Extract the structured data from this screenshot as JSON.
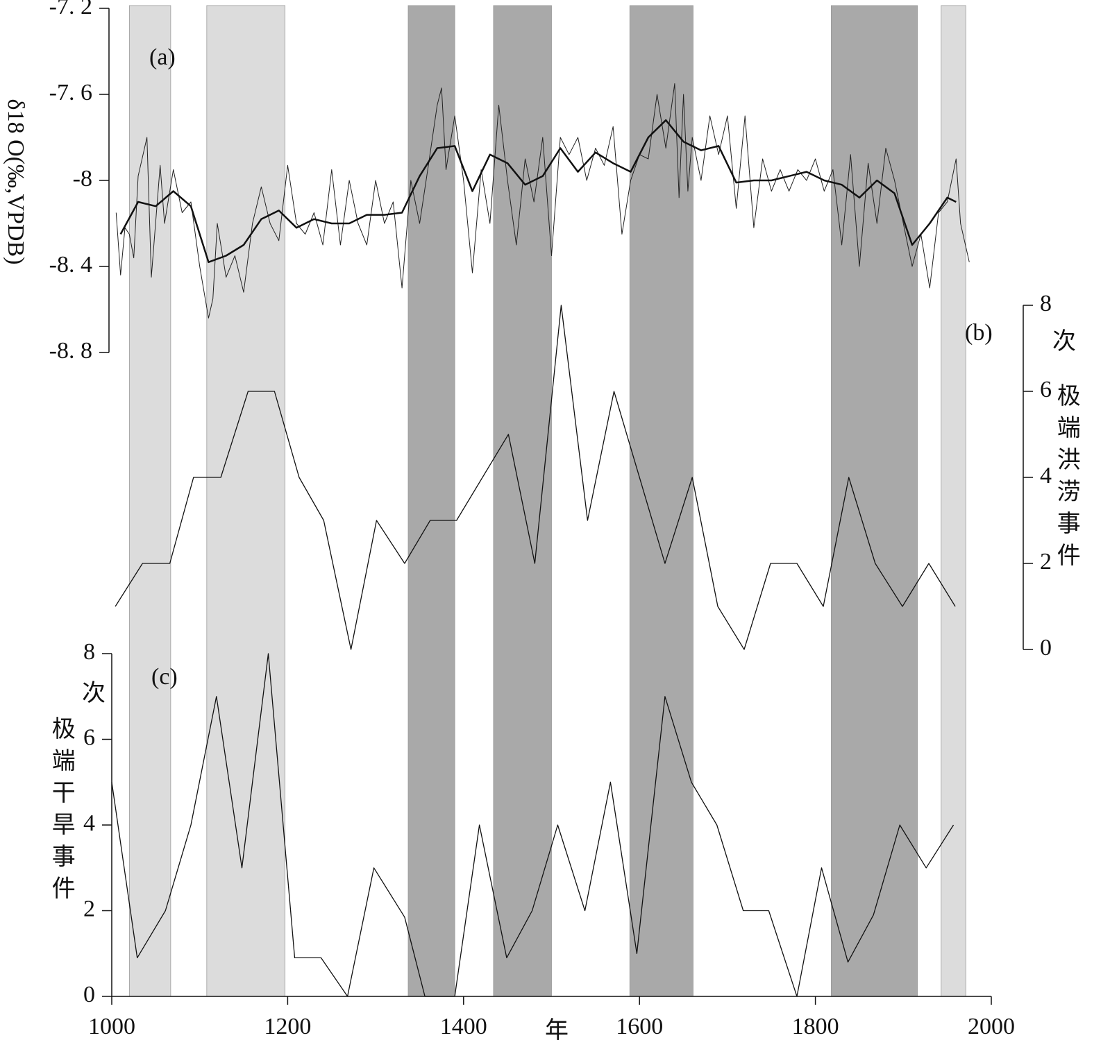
{
  "shaded_periods": [
    {
      "start": 1020,
      "end": 1067,
      "color": "#dcdcdc"
    },
    {
      "start": 1108,
      "end": 1197,
      "color": "#dcdcdc"
    },
    {
      "start": 1337,
      "end": 1390,
      "color": "#a9a9a9"
    },
    {
      "start": 1434,
      "end": 1500,
      "color": "#a9a9a9"
    },
    {
      "start": 1589,
      "end": 1661,
      "color": "#a9a9a9"
    },
    {
      "start": 1818,
      "end": 1916,
      "color": "#a9a9a9"
    },
    {
      "start": 1943,
      "end": 1971,
      "color": "#dcdcdc"
    }
  ],
  "chart_data": [
    {
      "type": "line",
      "panel_label": "(a)",
      "y_label": "δ18 O(‰,VPDB)",
      "xlim": [
        1000,
        2000
      ],
      "ylim": [
        -8.8,
        -7.2
      ],
      "yticks": [
        {
          "value": -7.2,
          "label": "-7. 2"
        },
        {
          "value": -7.6,
          "label": "-7. 6"
        },
        -8,
        {
          "value": -8.4,
          "label": "-8. 4"
        },
        {
          "value": -8.8,
          "label": "-8. 8"
        }
      ],
      "series": [
        {
          "color": "#222",
          "width": 1,
          "x": [
            1005,
            1010,
            1015,
            1020,
            1025,
            1030,
            1040,
            1045,
            1055,
            1060,
            1070,
            1080,
            1090,
            1100,
            1110,
            1115,
            1120,
            1130,
            1140,
            1150,
            1160,
            1170,
            1180,
            1190,
            1200,
            1210,
            1220,
            1230,
            1240,
            1250,
            1260,
            1270,
            1280,
            1290,
            1300,
            1310,
            1320,
            1330,
            1340,
            1350,
            1360,
            1370,
            1375,
            1380,
            1390,
            1400,
            1410,
            1420,
            1430,
            1440,
            1450,
            1460,
            1470,
            1480,
            1490,
            1500,
            1510,
            1520,
            1530,
            1540,
            1550,
            1560,
            1570,
            1580,
            1590,
            1600,
            1610,
            1620,
            1630,
            1640,
            1645,
            1650,
            1655,
            1660,
            1670,
            1680,
            1690,
            1700,
            1710,
            1720,
            1730,
            1740,
            1750,
            1760,
            1770,
            1780,
            1790,
            1800,
            1810,
            1820,
            1830,
            1840,
            1850,
            1860,
            1870,
            1880,
            1890,
            1900,
            1910,
            1920,
            1930,
            1940,
            1950,
            1960,
            1965,
            1975
          ],
          "values": [
            -8.15,
            -8.44,
            -8.22,
            -8.25,
            -8.36,
            -7.98,
            -7.8,
            -8.45,
            -7.93,
            -8.2,
            -7.95,
            -8.15,
            -8.1,
            -8.4,
            -8.64,
            -8.55,
            -8.2,
            -8.45,
            -8.35,
            -8.52,
            -8.2,
            -8.03,
            -8.2,
            -8.28,
            -7.93,
            -8.2,
            -8.25,
            -8.15,
            -8.3,
            -7.95,
            -8.3,
            -8.0,
            -8.2,
            -8.3,
            -8.0,
            -8.2,
            -8.1,
            -8.5,
            -8.0,
            -8.2,
            -7.93,
            -7.65,
            -7.57,
            -7.95,
            -7.7,
            -8.0,
            -8.43,
            -7.95,
            -8.2,
            -7.65,
            -8.0,
            -8.3,
            -7.9,
            -8.1,
            -7.8,
            -8.35,
            -7.8,
            -7.88,
            -7.8,
            -8.0,
            -7.85,
            -7.93,
            -7.75,
            -8.25,
            -8.0,
            -7.88,
            -7.9,
            -7.6,
            -7.85,
            -7.55,
            -8.08,
            -7.6,
            -8.05,
            -7.8,
            -8.0,
            -7.7,
            -7.88,
            -7.7,
            -8.13,
            -7.7,
            -8.22,
            -7.9,
            -8.05,
            -7.95,
            -8.05,
            -7.95,
            -8.0,
            -7.9,
            -8.05,
            -7.95,
            -8.3,
            -7.88,
            -8.4,
            -7.92,
            -8.2,
            -7.85,
            -8.0,
            -8.2,
            -8.4,
            -8.25,
            -8.5,
            -8.15,
            -8.1,
            -7.9,
            -8.2,
            -8.38
          ]
        },
        {
          "color": "#111",
          "width": 2.5,
          "x": [
            1010,
            1030,
            1050,
            1070,
            1090,
            1110,
            1130,
            1150,
            1170,
            1190,
            1210,
            1230,
            1250,
            1270,
            1290,
            1310,
            1330,
            1350,
            1370,
            1390,
            1410,
            1430,
            1450,
            1470,
            1490,
            1510,
            1530,
            1550,
            1570,
            1590,
            1610,
            1630,
            1650,
            1670,
            1690,
            1710,
            1730,
            1750,
            1770,
            1790,
            1810,
            1830,
            1850,
            1870,
            1890,
            1910,
            1930,
            1950,
            1960
          ],
          "values": [
            -8.25,
            -8.1,
            -8.12,
            -8.05,
            -8.12,
            -8.38,
            -8.35,
            -8.3,
            -8.18,
            -8.14,
            -8.22,
            -8.18,
            -8.2,
            -8.2,
            -8.16,
            -8.16,
            -8.15,
            -7.98,
            -7.85,
            -7.84,
            -8.05,
            -7.88,
            -7.92,
            -8.02,
            -7.98,
            -7.85,
            -7.96,
            -7.87,
            -7.92,
            -7.96,
            -7.8,
            -7.72,
            -7.82,
            -7.86,
            -7.84,
            -8.01,
            -8.0,
            -8.0,
            -7.98,
            -7.96,
            -8.0,
            -8.02,
            -8.08,
            -8.0,
            -8.06,
            -8.3,
            -8.2,
            -8.08,
            -8.1
          ]
        }
      ]
    },
    {
      "type": "line",
      "panel_label": "(b)",
      "y_unit": "次",
      "y_label": "极端洪涝事件",
      "xlim": [
        1000,
        2000
      ],
      "ylim": [
        0,
        8
      ],
      "yticks": [
        0,
        2,
        4,
        6,
        8
      ],
      "series": [
        {
          "color": "#111",
          "width": 1.3,
          "x": [
            1004,
            1035,
            1066,
            1093,
            1124,
            1155,
            1185,
            1213,
            1241,
            1272,
            1301,
            1333,
            1362,
            1392,
            1451,
            1481,
            1511,
            1541,
            1571,
            1629,
            1660,
            1689,
            1719,
            1749,
            1779,
            1809,
            1838,
            1868,
            1899,
            1929,
            1959
          ],
          "values": [
            1,
            2,
            2,
            4,
            4,
            6,
            6,
            4,
            3,
            0,
            3,
            2,
            3,
            3,
            5,
            2,
            8,
            3,
            6,
            2,
            4,
            1,
            0,
            2,
            2,
            1,
            4,
            2,
            1,
            2,
            1
          ]
        }
      ]
    },
    {
      "type": "line",
      "panel_label": "(c)",
      "y_unit": "次",
      "y_label": "极端干旱事件",
      "x_label": "年",
      "xlim": [
        1000,
        2000
      ],
      "xticks": [
        1000,
        1200,
        1400,
        1600,
        1800,
        2000
      ],
      "ylim": [
        0,
        8
      ],
      "yticks": [
        0,
        2,
        4,
        6,
        8
      ],
      "series": [
        {
          "color": "#111",
          "width": 1.3,
          "x": [
            1000,
            1029,
            1061,
            1090,
            1119,
            1148,
            1178,
            1208,
            1238,
            1268,
            1298,
            1333,
            1356,
            1390,
            1418,
            1449,
            1478,
            1507,
            1538,
            1567,
            1597,
            1629,
            1659,
            1688,
            1718,
            1747,
            1779,
            1807,
            1837,
            1866,
            1896,
            1926,
            1957
          ],
          "values": [
            5,
            0.9,
            2,
            4,
            7,
            3,
            8,
            0.9,
            0.9,
            0,
            3,
            1.85,
            0,
            0,
            4,
            0.9,
            2,
            4,
            2,
            5,
            1,
            7,
            5,
            4,
            2,
            2,
            0,
            3,
            0.8,
            1.9,
            4,
            3,
            4
          ]
        }
      ]
    }
  ]
}
